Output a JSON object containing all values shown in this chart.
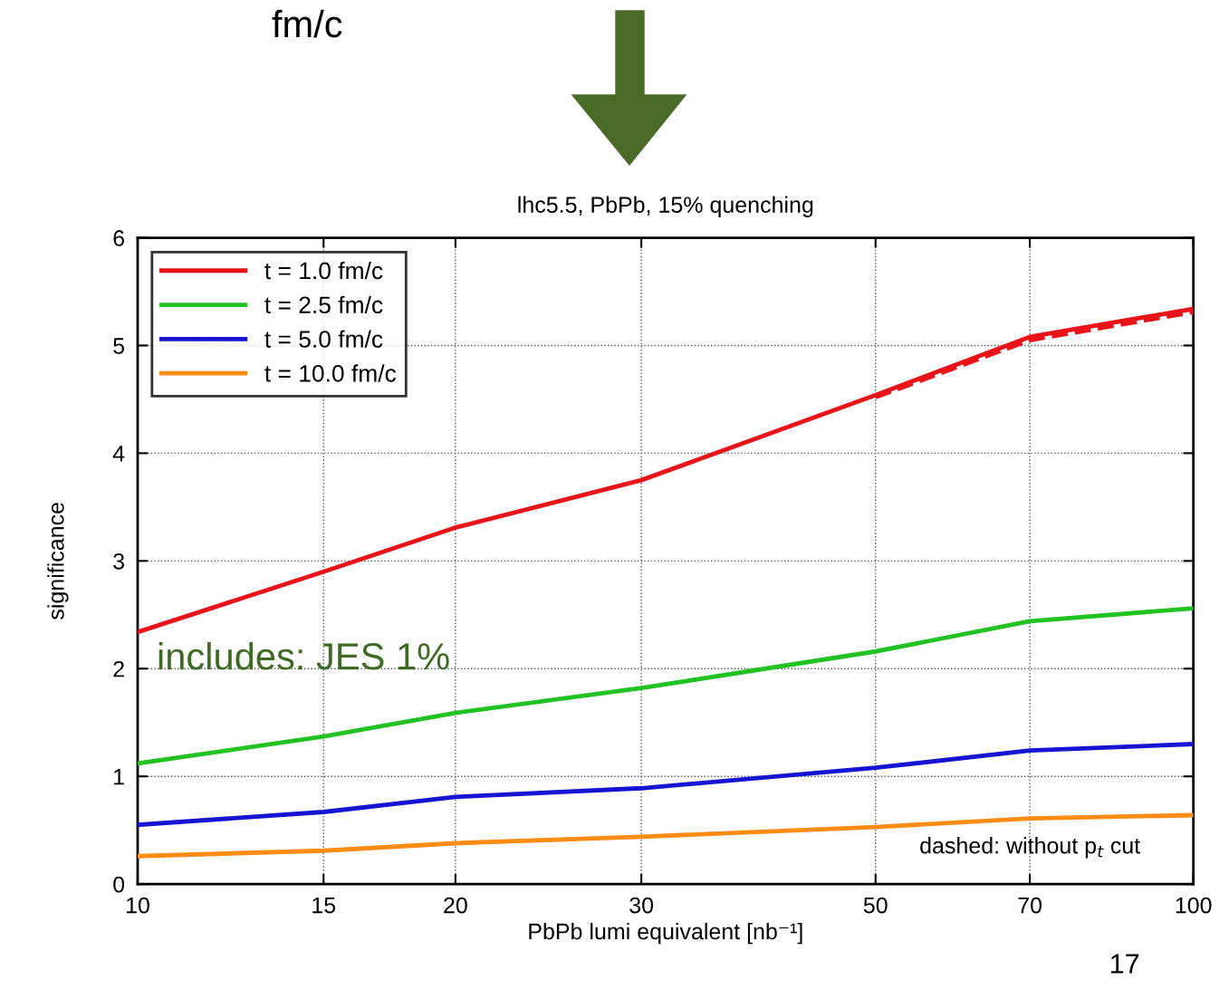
{
  "chart_data": {
    "type": "line",
    "title": "lhc5.5, PbPb, 15% quenching",
    "xlabel": "PbPb lumi equivalent [nb⁻¹]",
    "ylabel": "significance",
    "x": [
      10,
      15,
      20,
      30,
      50,
      70,
      100
    ],
    "series": [
      {
        "name": "t = 1.0 fm/c",
        "color": "#e8141a",
        "values": [
          2.34,
          2.9,
          3.31,
          3.75,
          4.54,
          5.08,
          5.34
        ]
      },
      {
        "name": "t = 2.5 fm/c",
        "color": "#22c222",
        "values": [
          1.12,
          1.37,
          1.59,
          1.82,
          2.16,
          2.44,
          2.56
        ]
      },
      {
        "name": "t = 5.0 fm/c",
        "color": "#1414d2",
        "values": [
          0.55,
          0.67,
          0.81,
          0.89,
          1.08,
          1.24,
          1.3
        ]
      },
      {
        "name": "t = 10.0 fm/c",
        "color": "#ff8c14",
        "values": [
          0.26,
          0.31,
          0.38,
          0.44,
          0.53,
          0.61,
          0.64
        ]
      },
      {
        "color": "#e8141a",
        "line_style": "dashed",
        "x": [
          50,
          70,
          100
        ],
        "values": [
          4.52,
          5.05,
          5.31
        ]
      }
    ],
    "log": "x",
    "xlim": [
      10,
      100
    ],
    "xticks": [
      10,
      15,
      20,
      30,
      50,
      70,
      100
    ],
    "ylim": [
      0,
      6
    ],
    "yticks": [
      0,
      1,
      2,
      3,
      4,
      5,
      6
    ],
    "grid": true,
    "legend": "top left",
    "line_style": "solid",
    "annotations": [
      "includes: JES 1%",
      "dashed: without p$_{t}$ cut",
      "17",
      "fm/c"
    ]
  }
}
